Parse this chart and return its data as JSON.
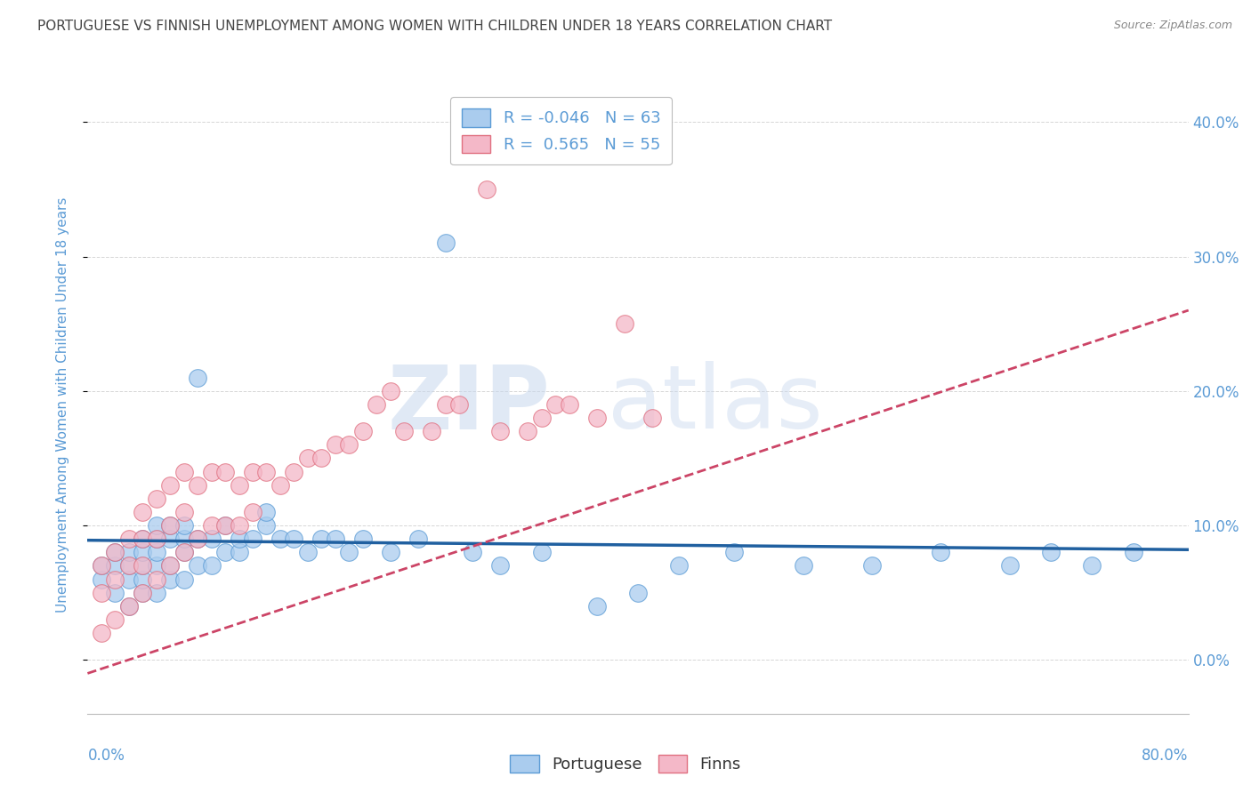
{
  "title": "PORTUGUESE VS FINNISH UNEMPLOYMENT AMONG WOMEN WITH CHILDREN UNDER 18 YEARS CORRELATION CHART",
  "source": "Source: ZipAtlas.com",
  "ylabel": "Unemployment Among Women with Children Under 18 years",
  "xlim": [
    0,
    0.8
  ],
  "ylim": [
    -0.04,
    0.42
  ],
  "yticks": [
    0.0,
    0.1,
    0.2,
    0.3,
    0.4
  ],
  "ytick_labels": [
    "0.0%",
    "10.0%",
    "20.0%",
    "30.0%",
    "40.0%"
  ],
  "portuguese_color": "#aaccee",
  "portuguese_edge": "#5b9bd5",
  "finns_color": "#f4b8c8",
  "finns_edge": "#e07080",
  "trend_portuguese_color": "#2060a0",
  "trend_finns_color": "#cc4466",
  "trend_finns_style": "--",
  "legend_R_portuguese": "-0.046",
  "legend_N_portuguese": "63",
  "legend_R_finns": "0.565",
  "legend_N_finns": "55",
  "watermark_zip": "ZIP",
  "watermark_atlas": "atlas",
  "tick_color": "#5b9bd5",
  "title_color": "#444444",
  "grid_color": "#cccccc",
  "background_color": "#ffffff",
  "portuguese_x": [
    0.01,
    0.01,
    0.02,
    0.02,
    0.02,
    0.03,
    0.03,
    0.03,
    0.03,
    0.04,
    0.04,
    0.04,
    0.04,
    0.04,
    0.05,
    0.05,
    0.05,
    0.05,
    0.05,
    0.06,
    0.06,
    0.06,
    0.06,
    0.07,
    0.07,
    0.07,
    0.07,
    0.08,
    0.08,
    0.08,
    0.09,
    0.09,
    0.1,
    0.1,
    0.11,
    0.11,
    0.12,
    0.13,
    0.13,
    0.14,
    0.15,
    0.16,
    0.17,
    0.18,
    0.19,
    0.2,
    0.22,
    0.24,
    0.26,
    0.28,
    0.3,
    0.33,
    0.37,
    0.4,
    0.43,
    0.47,
    0.52,
    0.57,
    0.62,
    0.67,
    0.7,
    0.73,
    0.76
  ],
  "portuguese_y": [
    0.06,
    0.07,
    0.05,
    0.07,
    0.08,
    0.04,
    0.06,
    0.07,
    0.08,
    0.05,
    0.06,
    0.07,
    0.08,
    0.09,
    0.05,
    0.07,
    0.08,
    0.09,
    0.1,
    0.06,
    0.07,
    0.09,
    0.1,
    0.06,
    0.08,
    0.09,
    0.1,
    0.07,
    0.09,
    0.21,
    0.07,
    0.09,
    0.08,
    0.1,
    0.08,
    0.09,
    0.09,
    0.1,
    0.11,
    0.09,
    0.09,
    0.08,
    0.09,
    0.09,
    0.08,
    0.09,
    0.08,
    0.09,
    0.31,
    0.08,
    0.07,
    0.08,
    0.04,
    0.05,
    0.07,
    0.08,
    0.07,
    0.07,
    0.08,
    0.07,
    0.08,
    0.07,
    0.08
  ],
  "finns_x": [
    0.01,
    0.01,
    0.01,
    0.02,
    0.02,
    0.02,
    0.03,
    0.03,
    0.03,
    0.04,
    0.04,
    0.04,
    0.04,
    0.05,
    0.05,
    0.05,
    0.06,
    0.06,
    0.06,
    0.07,
    0.07,
    0.07,
    0.08,
    0.08,
    0.09,
    0.09,
    0.1,
    0.1,
    0.11,
    0.11,
    0.12,
    0.12,
    0.13,
    0.14,
    0.15,
    0.16,
    0.17,
    0.18,
    0.19,
    0.2,
    0.21,
    0.22,
    0.23,
    0.25,
    0.26,
    0.27,
    0.29,
    0.3,
    0.32,
    0.33,
    0.34,
    0.35,
    0.37,
    0.39,
    0.41
  ],
  "finns_y": [
    0.02,
    0.05,
    0.07,
    0.03,
    0.06,
    0.08,
    0.04,
    0.07,
    0.09,
    0.05,
    0.07,
    0.09,
    0.11,
    0.06,
    0.09,
    0.12,
    0.07,
    0.1,
    0.13,
    0.08,
    0.11,
    0.14,
    0.09,
    0.13,
    0.1,
    0.14,
    0.1,
    0.14,
    0.1,
    0.13,
    0.11,
    0.14,
    0.14,
    0.13,
    0.14,
    0.15,
    0.15,
    0.16,
    0.16,
    0.17,
    0.19,
    0.2,
    0.17,
    0.17,
    0.19,
    0.19,
    0.35,
    0.17,
    0.17,
    0.18,
    0.19,
    0.19,
    0.18,
    0.25,
    0.18
  ]
}
